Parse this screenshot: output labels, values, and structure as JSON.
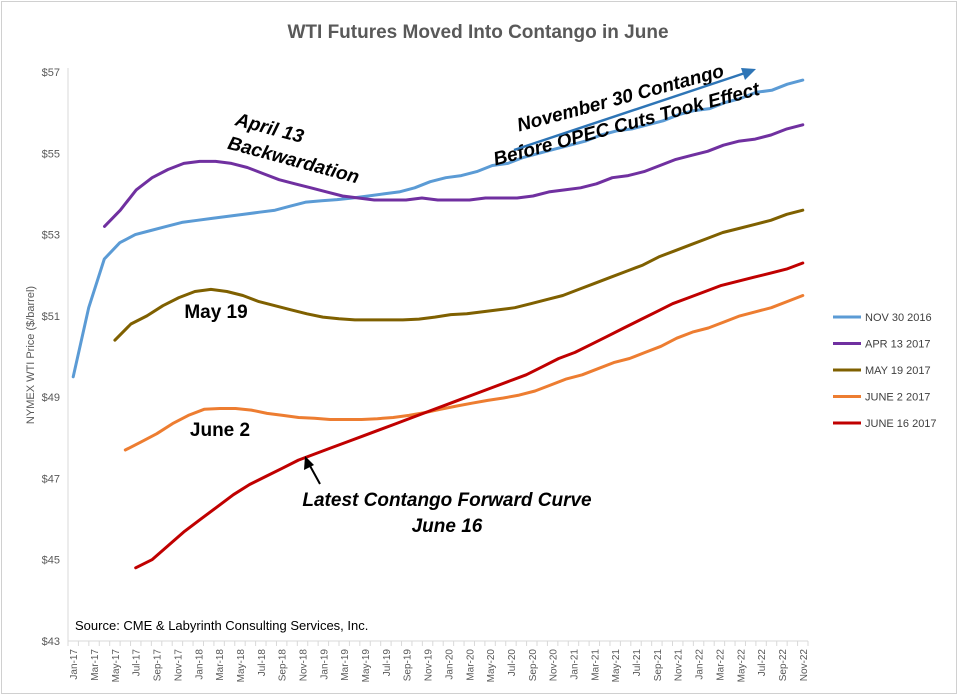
{
  "chart_data": {
    "type": "line",
    "title": "WTI Futures Moved Into Contango in  June",
    "xlabel": "",
    "ylabel": "NYMEX WTI Price ($/barrel)",
    "ylim": [
      43,
      57
    ],
    "yticks": [
      43,
      45,
      47,
      49,
      51,
      53,
      55,
      57
    ],
    "ytick_labels": [
      "$43",
      "$45",
      "$47",
      "$49",
      "$51",
      "$53",
      "$55",
      "$57"
    ],
    "x_range": [
      "Jan-17",
      "Nov-22"
    ],
    "xtick_labels": [
      "Jan-17",
      "Mar-17",
      "May-17",
      "Jul-17",
      "Sep-17",
      "Nov-17",
      "Jan-18",
      "Mar-18",
      "May-18",
      "Jul-18",
      "Sep-18",
      "Nov-18",
      "Jan-19",
      "Mar-19",
      "May-19",
      "Jul-19",
      "Sep-19",
      "Nov-19",
      "Jan-20",
      "Mar-20",
      "May-20",
      "Jul-20",
      "Sep-20",
      "Nov-20",
      "Jan-21",
      "Mar-21",
      "May-21",
      "Jul-21",
      "Sep-21",
      "Nov-21",
      "Jan-22",
      "Mar-22",
      "May-22",
      "Jul-22",
      "Sep-22",
      "Nov-22"
    ],
    "grid": false,
    "legend_position": "right",
    "series": [
      {
        "name": "NOV 30 2016",
        "color": "#5b9bd5",
        "start_month": 0,
        "values": [
          49.5,
          51.2,
          52.4,
          52.8,
          53.0,
          53.1,
          53.2,
          53.3,
          53.35,
          53.4,
          53.45,
          53.5,
          53.55,
          53.6,
          53.7,
          53.8,
          53.83,
          53.86,
          53.9,
          53.95,
          54.0,
          54.05,
          54.15,
          54.3,
          54.4,
          54.45,
          54.55,
          54.7,
          54.75,
          54.9,
          55.0,
          55.1,
          55.2,
          55.3,
          55.45,
          55.55,
          55.6,
          55.7,
          55.8,
          55.95,
          56.05,
          56.1,
          56.25,
          56.35,
          56.5,
          56.55,
          56.7,
          56.8
        ]
      },
      {
        "name": "APR 13 2017",
        "color": "#7030a0",
        "start_month": 3,
        "values": [
          53.2,
          53.6,
          54.1,
          54.4,
          54.6,
          54.75,
          54.8,
          54.8,
          54.75,
          54.65,
          54.5,
          54.35,
          54.25,
          54.15,
          54.05,
          53.95,
          53.9,
          53.85,
          53.85,
          53.85,
          53.9,
          53.85,
          53.85,
          53.85,
          53.9,
          53.9,
          53.9,
          53.95,
          54.05,
          54.1,
          54.15,
          54.25,
          54.4,
          54.45,
          54.55,
          54.7,
          54.85,
          54.95,
          55.05,
          55.2,
          55.3,
          55.35,
          55.45,
          55.6,
          55.7
        ]
      },
      {
        "name": "MAY 19 2017",
        "color": "#7f6000",
        "start_month": 4,
        "values": [
          50.4,
          50.8,
          51.0,
          51.25,
          51.45,
          51.6,
          51.65,
          51.6,
          51.5,
          51.35,
          51.25,
          51.15,
          51.05,
          50.97,
          50.93,
          50.9,
          50.9,
          50.9,
          50.9,
          50.92,
          50.97,
          51.03,
          51.05,
          51.1,
          51.15,
          51.2,
          51.3,
          51.4,
          51.5,
          51.65,
          51.8,
          51.95,
          52.1,
          52.25,
          52.45,
          52.6,
          52.75,
          52.9,
          53.05,
          53.15,
          53.25,
          53.35,
          53.5,
          53.6
        ]
      },
      {
        "name": "JUNE 2 2017",
        "color": "#ed7d31",
        "start_month": 5,
        "values": [
          47.7,
          47.9,
          48.1,
          48.35,
          48.55,
          48.7,
          48.72,
          48.72,
          48.68,
          48.6,
          48.55,
          48.5,
          48.48,
          48.45,
          48.45,
          48.45,
          48.47,
          48.5,
          48.55,
          48.62,
          48.7,
          48.78,
          48.85,
          48.92,
          48.98,
          49.05,
          49.15,
          49.3,
          49.45,
          49.55,
          49.7,
          49.85,
          49.95,
          50.1,
          50.25,
          50.45,
          50.6,
          50.7,
          50.85,
          51.0,
          51.1,
          51.2,
          51.35,
          51.5
        ]
      },
      {
        "name": "JUNE 16 2017",
        "color": "#c00000",
        "start_month": 6,
        "values": [
          44.8,
          45.0,
          45.35,
          45.7,
          46.0,
          46.3,
          46.6,
          46.85,
          47.05,
          47.25,
          47.45,
          47.6,
          47.75,
          47.9,
          48.05,
          48.2,
          48.35,
          48.5,
          48.65,
          48.8,
          48.95,
          49.1,
          49.25,
          49.4,
          49.55,
          49.75,
          49.95,
          50.1,
          50.3,
          50.5,
          50.7,
          50.9,
          51.1,
          51.3,
          51.45,
          51.6,
          51.75,
          51.85,
          51.95,
          52.05,
          52.15,
          52.3
        ]
      }
    ],
    "annotations": [
      {
        "text": "November 30 Contango",
        "color": "#2e75b6"
      },
      {
        "text": "Before OPEC Cuts Took Effect",
        "color": "#2e75b6"
      },
      {
        "text": "April 13",
        "color": "#7030a0"
      },
      {
        "text": "Backwardation",
        "color": "#7030a0"
      },
      {
        "text": "May 19",
        "color": "#7f6000"
      },
      {
        "text": "June 2",
        "color": "#ed7d31"
      },
      {
        "text": "Latest Contango Forward Curve",
        "color": "#e02020"
      },
      {
        "text": "June 16",
        "color": "#e02020"
      }
    ],
    "source": "Source: CME & Labyrinth Consulting Services, Inc."
  }
}
